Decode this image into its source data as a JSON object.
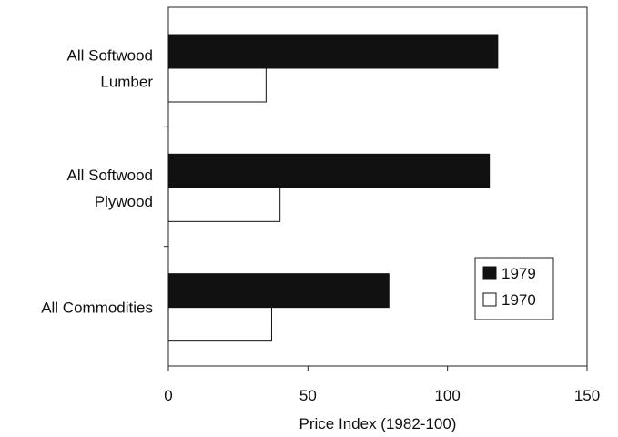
{
  "chart_data": {
    "type": "bar",
    "orientation": "horizontal",
    "categories": [
      [
        "All Softwood",
        "Lumber"
      ],
      [
        "All Softwood",
        "Plywood"
      ],
      [
        "All Commodities"
      ]
    ],
    "series": [
      {
        "name": "1979",
        "values": [
          118,
          115,
          79
        ],
        "color": "#111111"
      },
      {
        "name": "1970",
        "values": [
          35,
          40,
          37
        ],
        "color": "#ffffff"
      }
    ],
    "xlabel": "Price Index (1982-100)",
    "xlim": [
      0,
      150
    ],
    "xticks": [
      "0",
      "50",
      "100",
      "150"
    ],
    "grid": false,
    "legend": "bottom-right"
  }
}
